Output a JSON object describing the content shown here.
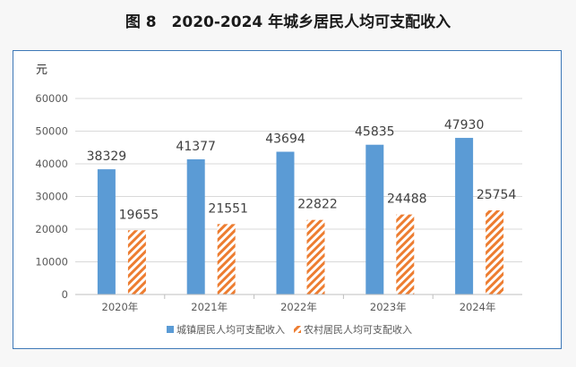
{
  "title": "图 8　2020-2024 年城乡居民人均可支配收入",
  "chart_data": {
    "type": "bar",
    "unit": "元",
    "categories": [
      "2020年",
      "2021年",
      "2022年",
      "2023年",
      "2024年"
    ],
    "series": [
      {
        "name": "城镇居民人均可支配收入",
        "values": [
          38329,
          41377,
          43694,
          45835,
          47930
        ],
        "color": "#5b9bd5",
        "pattern": "solid"
      },
      {
        "name": "农村居民人均可支配收入",
        "values": [
          19655,
          21551,
          22822,
          24488,
          25754
        ],
        "color": "#ed7d31",
        "pattern": "diagonal-stripes"
      }
    ],
    "ylim": [
      0,
      60000
    ],
    "yticks": [
      0,
      10000,
      20000,
      30000,
      40000,
      50000,
      60000
    ],
    "grid": true,
    "legend_position": "bottom"
  }
}
